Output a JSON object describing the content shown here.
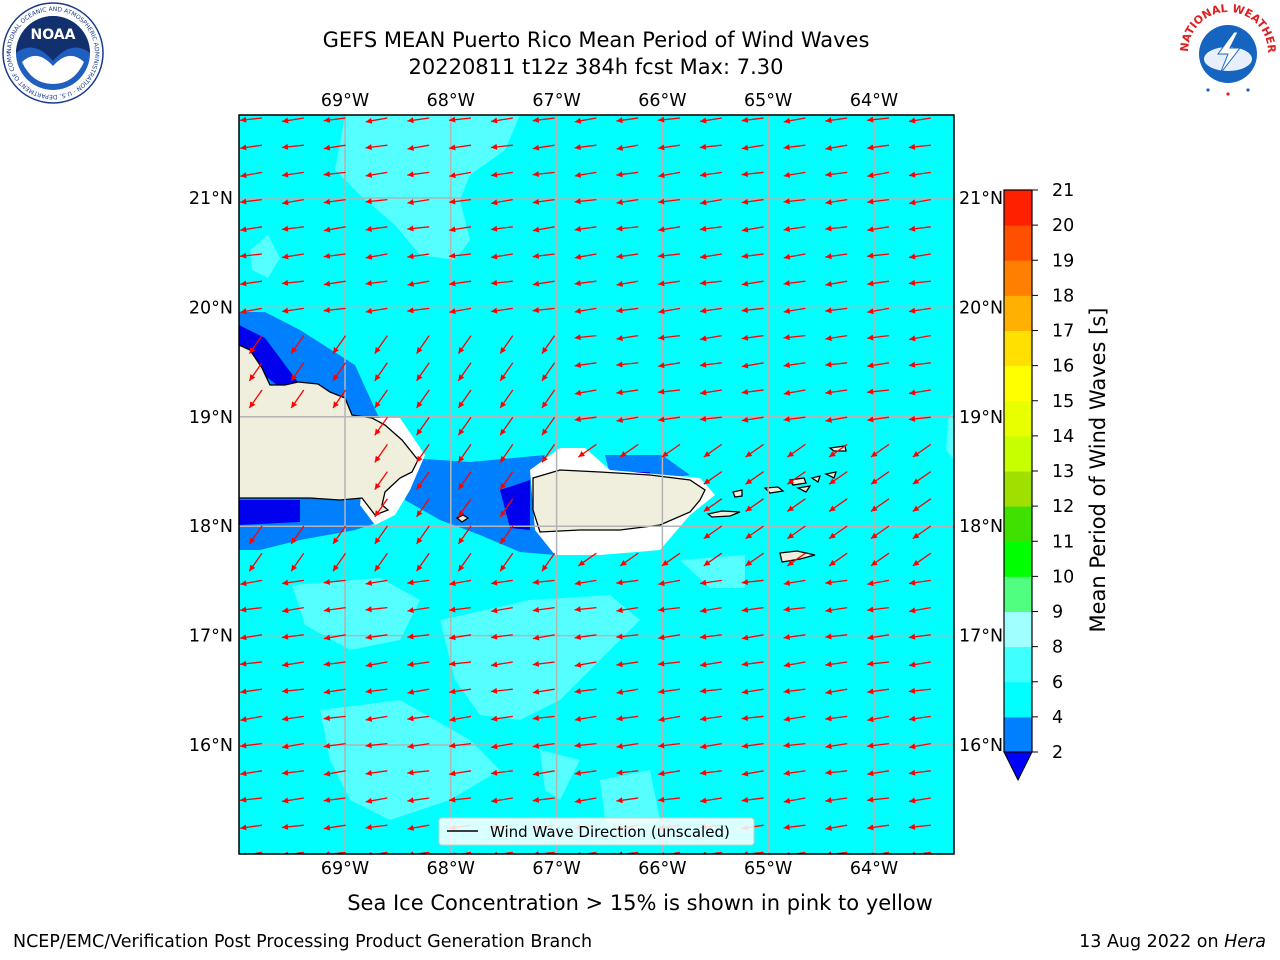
{
  "header": {
    "title_line1": "GEFS MEAN Puerto Rico Mean Period of Wind Waves",
    "title_line2": "20220811 t12z 384h fcst   Max: 7.30"
  },
  "logos": {
    "left": "NOAA",
    "left_ring": "NATIONAL OCEANIC AND ATMOSPHERIC ADMINISTRATION · U.S. DEPARTMENT OF COMMERCE",
    "right_ring": "NATIONAL WEATHER SERVICE"
  },
  "map": {
    "lon_labels": [
      "69°W",
      "68°W",
      "67°W",
      "66°W",
      "65°W",
      "64°W"
    ],
    "lat_labels": [
      "21°N",
      "20°N",
      "19°N",
      "18°N",
      "17°N",
      "16°N"
    ],
    "legend_label": "Wind Wave Direction (unscaled)",
    "colors": {
      "ocean": "#00ffff",
      "light": "#55ffff",
      "mid": "#0080ff",
      "deep": "#0000ee",
      "land": "#f0eedc",
      "arrow": "#ff0000"
    }
  },
  "colorbar": {
    "label": "Mean Period of Wind Waves [s]",
    "ticks": [
      "2",
      "4",
      "6",
      "8",
      "9",
      "10",
      "11",
      "12",
      "13",
      "14",
      "15",
      "16",
      "17",
      "18",
      "19",
      "20",
      "21"
    ],
    "colors": [
      "#0080ff",
      "#00ffff",
      "#40ffff",
      "#a0ffff",
      "#50ff80",
      "#00ff00",
      "#40e000",
      "#a0e000",
      "#c8ff00",
      "#e8ff00",
      "#ffff00",
      "#ffe000",
      "#ffb000",
      "#ff8000",
      "#ff5000",
      "#ff2000"
    ],
    "under_color": "#0000ff"
  },
  "footer": {
    "note": "Sea Ice Concentration > 15% is shown in pink to yellow",
    "left": "NCEP/EMC/Verification Post Processing Product Generation Branch",
    "right_prefix": "13 Aug 2022 on ",
    "right_host": "Hera"
  }
}
